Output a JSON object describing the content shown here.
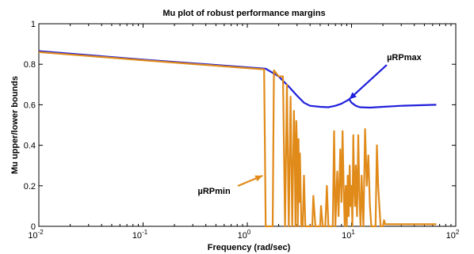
{
  "chart_data": {
    "type": "line",
    "title": "Mu plot of robust performance margins",
    "xlabel": "Frequency (rad/sec)",
    "ylabel": "Mu upper/lower bounds",
    "xscale": "log",
    "xlim": [
      0.01,
      100
    ],
    "ylim": [
      0,
      1
    ],
    "grid": false,
    "x_ticks": [
      {
        "base": "10",
        "exp": "-2"
      },
      {
        "base": "10",
        "exp": "-1"
      },
      {
        "base": "10",
        "exp": "0"
      },
      {
        "base": "10",
        "exp": "1"
      },
      {
        "base": "10",
        "exp": "2"
      }
    ],
    "y_ticks": [
      "0",
      "0.2",
      "0.4",
      "0.6",
      "0.8",
      "1"
    ],
    "series": [
      {
        "color": "#1f1fdc",
        "points": [
          [
            0.01,
            0.865
          ],
          [
            0.1,
            0.823
          ],
          [
            1.5,
            0.778
          ],
          [
            2.0,
            0.74
          ],
          [
            2.5,
            0.69
          ],
          [
            3.0,
            0.645
          ],
          [
            3.5,
            0.61
          ],
          [
            4.0,
            0.595
          ],
          [
            5.0,
            0.59
          ],
          [
            6.0,
            0.588
          ],
          [
            7.0,
            0.595
          ],
          [
            8.0,
            0.605
          ],
          [
            9.0,
            0.62
          ],
          [
            9.5,
            0.627
          ],
          [
            10.0,
            0.61
          ],
          [
            11.0,
            0.595
          ],
          [
            12.0,
            0.588
          ],
          [
            15.0,
            0.586
          ],
          [
            20.0,
            0.59
          ],
          [
            30.0,
            0.595
          ],
          [
            65.0,
            0.6
          ]
        ]
      },
      {
        "color": "#e08a1a",
        "points": [
          [
            0.01,
            0.86
          ],
          [
            0.1,
            0.82
          ],
          [
            1.45,
            0.775
          ],
          [
            1.5,
            0.0
          ],
          [
            1.75,
            0.0
          ],
          [
            1.8,
            0.77
          ],
          [
            2.0,
            0.74
          ],
          [
            2.2,
            0.74
          ],
          [
            2.3,
            0.0
          ],
          [
            2.4,
            0.7
          ],
          [
            2.5,
            0.0
          ],
          [
            2.6,
            0.64
          ],
          [
            2.7,
            0.0
          ],
          [
            2.8,
            0.57
          ],
          [
            2.85,
            0.4
          ],
          [
            2.9,
            0.0
          ],
          [
            2.95,
            0.52
          ],
          [
            3.0,
            0.4
          ],
          [
            3.05,
            0.0
          ],
          [
            3.1,
            0.43
          ],
          [
            3.15,
            0.12
          ],
          [
            3.2,
            0.36
          ],
          [
            3.3,
            0.0
          ],
          [
            3.4,
            0.0
          ],
          [
            3.5,
            0.25
          ],
          [
            3.6,
            0.0
          ],
          [
            4.2,
            0.0
          ],
          [
            4.3,
            0.15
          ],
          [
            4.5,
            0.0
          ],
          [
            5.0,
            0.0
          ],
          [
            5.1,
            0.1
          ],
          [
            5.3,
            0.0
          ],
          [
            5.6,
            0.0
          ],
          [
            5.8,
            0.2
          ],
          [
            6.0,
            0.0
          ],
          [
            6.6,
            0.0
          ],
          [
            6.8,
            0.47
          ],
          [
            7.0,
            0.0
          ],
          [
            7.3,
            0.27
          ],
          [
            7.5,
            0.05
          ],
          [
            7.8,
            0.38
          ],
          [
            8.0,
            0.12
          ],
          [
            8.2,
            0.47
          ],
          [
            8.4,
            0.2
          ],
          [
            8.6,
            0.0
          ],
          [
            8.8,
            0.2
          ],
          [
            9.0,
            0.0
          ],
          [
            9.2,
            0.25
          ],
          [
            9.4,
            0.05
          ],
          [
            9.6,
            0.3
          ],
          [
            9.8,
            0.1
          ],
          [
            10.0,
            0.2
          ],
          [
            10.2,
            0.0
          ],
          [
            10.4,
            0.45
          ],
          [
            10.6,
            0.2
          ],
          [
            10.8,
            0.1
          ],
          [
            11.0,
            0.3
          ],
          [
            11.3,
            0.05
          ],
          [
            11.6,
            0.45
          ],
          [
            11.9,
            0.15
          ],
          [
            12.2,
            0.0
          ],
          [
            12.5,
            0.25
          ],
          [
            13.0,
            0.0
          ],
          [
            13.5,
            0.48
          ],
          [
            14.0,
            0.2
          ],
          [
            14.5,
            0.35
          ],
          [
            15.0,
            0.1
          ],
          [
            15.5,
            0.0
          ],
          [
            17.0,
            0.0
          ],
          [
            17.5,
            0.4
          ],
          [
            18.0,
            0.2
          ],
          [
            18.5,
            0.1
          ],
          [
            19.0,
            0.0
          ],
          [
            20.0,
            0.0
          ],
          [
            20.5,
            0.03
          ],
          [
            21.0,
            0.01
          ],
          [
            25.0,
            0.01
          ],
          [
            65.0,
            0.01
          ]
        ]
      }
    ],
    "annotations": [
      {
        "label": "µRPmax",
        "point_to": [
          9.5,
          0.627
        ],
        "text_at": [
          32.0,
          0.82
        ]
      },
      {
        "label": "µRPmin",
        "point_to": [
          1.4,
          0.25
        ],
        "text_at": [
          0.48,
          0.16
        ]
      }
    ]
  }
}
